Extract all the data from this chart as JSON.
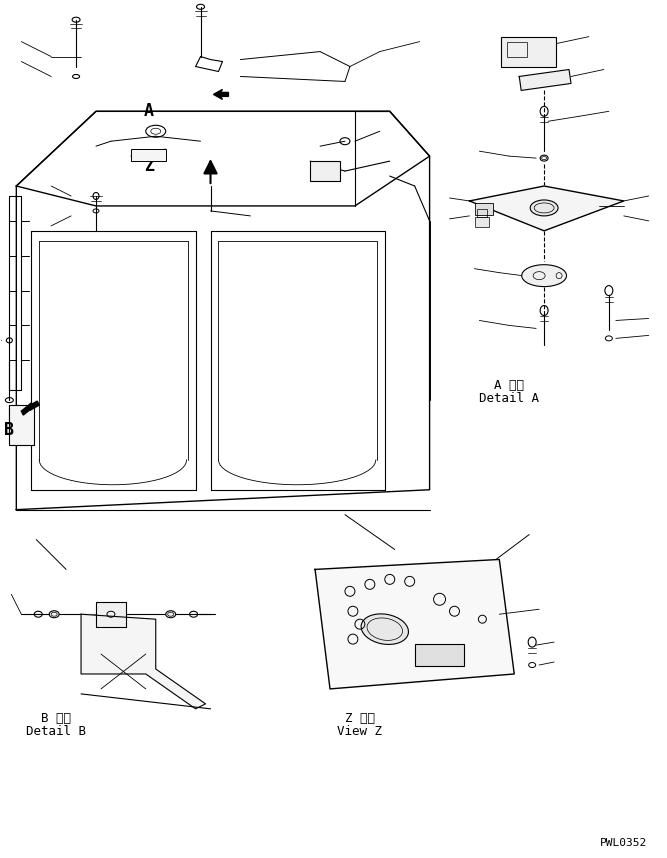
{
  "bg_color": "#ffffff",
  "line_color": "#000000",
  "watermark": "PWL0352",
  "label_A": "A",
  "label_Z": "Z",
  "label_B": "B",
  "detail_A_line1": "A 詳細",
  "detail_A_line2": "Detail A",
  "detail_B_line1": "B 詳細",
  "detail_B_line2": "Detail B",
  "view_Z_line1": "Z 　視",
  "view_Z_line2": "View Z"
}
